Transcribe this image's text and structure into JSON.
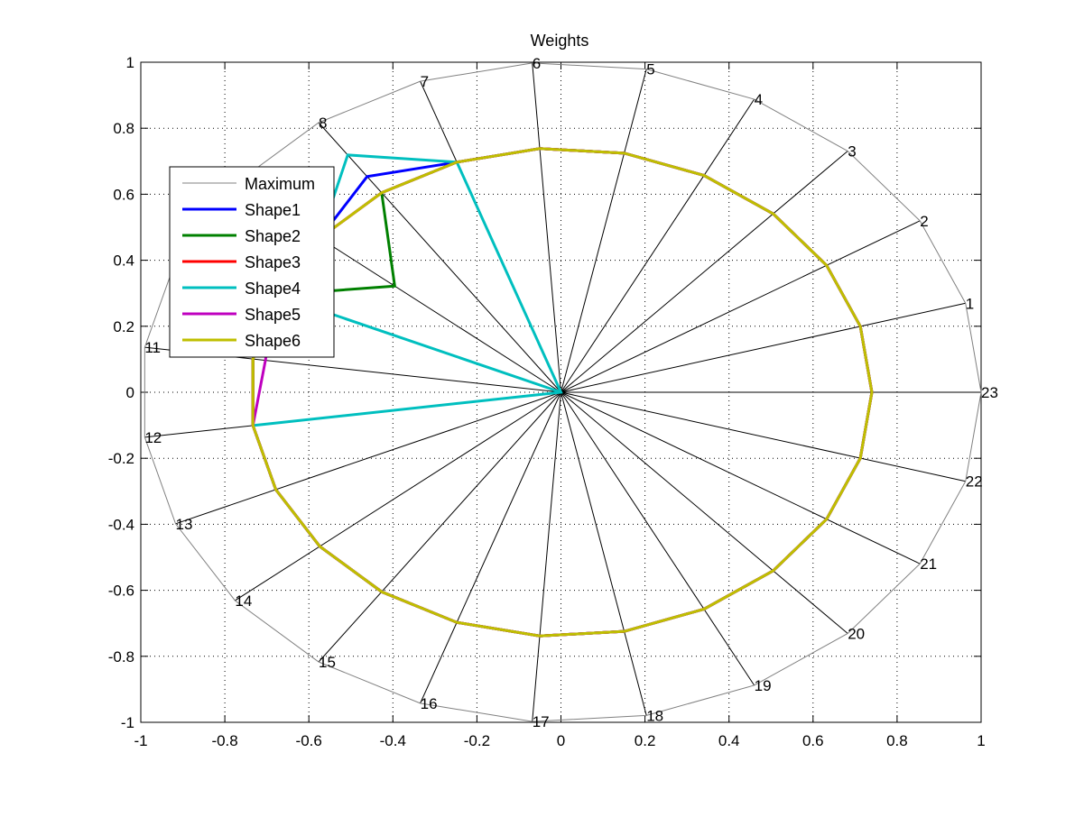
{
  "chart_data": {
    "type": "radar",
    "title": "Weights",
    "xlabel": "",
    "ylabel": "",
    "xlim": [
      -1,
      1
    ],
    "ylim": [
      -1,
      1
    ],
    "grid": true,
    "legend_position": "upper-left",
    "xticks": [
      "-1",
      "-0.8",
      "-0.6",
      "-0.4",
      "-0.2",
      "0",
      "0.2",
      "0.4",
      "0.6",
      "0.8",
      "1"
    ],
    "yticks": [
      "-1",
      "-0.8",
      "-0.6",
      "-0.4",
      "-0.2",
      "0",
      "0.2",
      "0.4",
      "0.6",
      "0.8",
      "1"
    ],
    "spoke_labels": [
      "1",
      "2",
      "3",
      "4",
      "5",
      "6",
      "7",
      "8",
      "9",
      "10",
      "11",
      "12",
      "13",
      "14",
      "15",
      "16",
      "17",
      "18",
      "19",
      "20",
      "21",
      "22",
      "23"
    ],
    "series": [
      {
        "name": "Maximum",
        "color": "#808080",
        "values": [
          1,
          1,
          1,
          1,
          1,
          1,
          1,
          1,
          1,
          1,
          1,
          1,
          1,
          1,
          1,
          1,
          1,
          1,
          1,
          1,
          1,
          1,
          1
        ]
      },
      {
        "name": "Shape1",
        "color": "#0000ff",
        "values": [
          0.74,
          0.74,
          0.74,
          0.74,
          0.74,
          0.74,
          0.74,
          0.8,
          0.74,
          0.74,
          0.74,
          0.74,
          0.74,
          0.74,
          0.74,
          0.74,
          0.74,
          0.74,
          0.74,
          0.74,
          0.74,
          0.74,
          0.74
        ]
      },
      {
        "name": "Shape2",
        "color": "#008000",
        "values": [
          0.74,
          0.74,
          0.74,
          0.74,
          0.74,
          0.74,
          0.74,
          0.74,
          0.51,
          0.74,
          0.74,
          0.74,
          0.74,
          0.74,
          0.74,
          0.74,
          0.74,
          0.74,
          0.74,
          0.74,
          0.74,
          0.74,
          0.74
        ]
      },
      {
        "name": "Shape3",
        "color": "#ff0000",
        "values": [
          0.74,
          0.74,
          0.74,
          0.74,
          0.74,
          0.74,
          0.74,
          0.74,
          0.74,
          0.74,
          0.74,
          0.74,
          0.74,
          0.74,
          0.74,
          0.74,
          0.74,
          0.74,
          0.74,
          0.74,
          0.74,
          0.74,
          0.74
        ]
      },
      {
        "name": "Shape4",
        "color": "#00bfbf",
        "values": [
          0,
          0,
          0,
          0,
          0,
          0,
          0.74,
          0.88,
          0.74,
          0.6,
          0,
          0.74,
          0,
          0,
          0,
          0,
          0,
          0,
          0,
          0,
          0,
          0,
          0
        ]
      },
      {
        "name": "Shape5",
        "color": "#bf00bf",
        "values": [
          0.74,
          0.74,
          0.74,
          0.74,
          0.74,
          0.74,
          0.74,
          0.74,
          0.74,
          0.74,
          0.71,
          0.74,
          0.74,
          0.74,
          0.74,
          0.74,
          0.74,
          0.74,
          0.74,
          0.74,
          0.74,
          0.74,
          0.74
        ]
      },
      {
        "name": "Shape6",
        "color": "#bfbf00",
        "values": [
          0.74,
          0.74,
          0.74,
          0.74,
          0.74,
          0.74,
          0.74,
          0.74,
          0.74,
          0.74,
          0.74,
          0.74,
          0.74,
          0.74,
          0.74,
          0.74,
          0.74,
          0.74,
          0.74,
          0.74,
          0.74,
          0.74,
          0.74
        ]
      }
    ]
  }
}
